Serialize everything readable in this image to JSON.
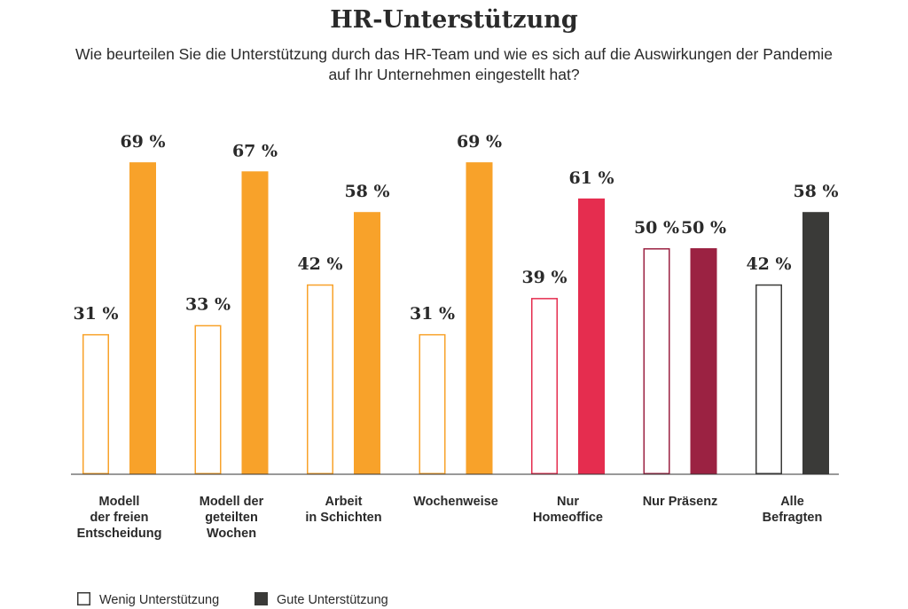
{
  "chart_data": {
    "type": "bar",
    "title": "HR-Unterstützung",
    "subtitle": [
      "Wie beurteilen Sie die Unterstützung durch das HR-Team und wie es sich auf die Auswirkungen der Pandemie",
      "auf Ihr Unternehmen eingestellt hat?"
    ],
    "value_suffix": " %",
    "ylim": [
      0,
      100
    ],
    "grid": false,
    "legend_position": "bottom-left",
    "categories": [
      [
        "Modell",
        "der freien",
        "Entscheidung"
      ],
      [
        "Modell der",
        "geteilten",
        "Wochen"
      ],
      [
        "Arbeit",
        "in Schichten"
      ],
      [
        "Wochenweise"
      ],
      [
        "Nur",
        "Homeoffice"
      ],
      [
        "Nur Präsenz"
      ],
      [
        "Alle",
        "Befragten"
      ]
    ],
    "category_colors": [
      "#f8a22a",
      "#f8a22a",
      "#f8a22a",
      "#f8a22a",
      "#e52d4f",
      "#9b2242",
      "#3a3a38"
    ],
    "series": [
      {
        "name": "Wenig Unterstützung",
        "style": "outline",
        "values": [
          31,
          33,
          42,
          31,
          39,
          50,
          42
        ]
      },
      {
        "name": "Gute Unterstützung",
        "style": "filled",
        "values": [
          69,
          67,
          58,
          69,
          61,
          50,
          58
        ]
      }
    ]
  }
}
